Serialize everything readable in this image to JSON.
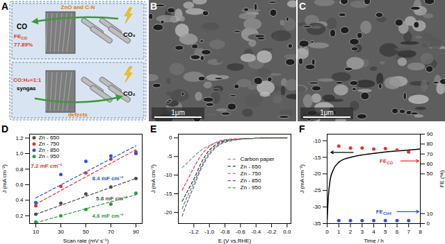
{
  "panels": {
    "A": {
      "letter": "A",
      "top": {
        "label": "ZnO and C-N",
        "product": "CO",
        "fe": {
          "text": "FE",
          "sub": "CO"
        },
        "fe_value": "77.89%",
        "reactant": "CO₂"
      },
      "bottom": {
        "label": "defects",
        "product": "CO:H₂=1:1",
        "product_name": "syngas",
        "reactant": "CO₂"
      }
    },
    "B": {
      "letter": "B",
      "scale_bar": "1μm"
    },
    "C": {
      "letter": "C",
      "scale_bar": "1μm"
    }
  },
  "chart_data": [
    {
      "letter": "D",
      "type": "scatter",
      "x_label": "Scan rate (mV s⁻¹)",
      "y_label": "J (mA cm⁻²)",
      "xlim": [
        5,
        95
      ],
      "xticks": [
        10,
        30,
        50,
        70,
        90
      ],
      "ylim": [
        0.1,
        1.25
      ],
      "yticks": [
        0.2,
        0.4,
        0.6,
        0.8,
        {
          "value": 1,
          "label": "1.0"
        },
        1.2
      ],
      "grid": false,
      "legend": "top-left",
      "marker": "circle",
      "line_style": "dashed",
      "x": [
        10,
        30,
        50,
        70,
        90
      ],
      "fit_x": [
        10,
        90
      ],
      "series": [
        {
          "name": "Zn - 650",
          "color": "#4d4d4d",
          "values": [
            0.22,
            0.36,
            0.48,
            0.57,
            0.68
          ],
          "fit": [
            0.22,
            0.68
          ],
          "annotation": "5.8 mF cm⁻²"
        },
        {
          "name": "Zn - 750",
          "color": "#e8332a",
          "values": [
            0.33,
            0.58,
            0.75,
            0.93,
            1.02
          ],
          "fit": [
            0.35,
            1.05
          ],
          "annotation": "7.2 mF cm⁻²"
        },
        {
          "name": "Zn - 850",
          "color": "#2b54d6",
          "values": [
            0.37,
            0.73,
            0.9,
            0.97,
            1.0
          ],
          "fit": [
            0.43,
            1.1
          ],
          "annotation": "8.4 mF cm⁻²"
        },
        {
          "name": "Zn - 950",
          "color": "#2e9b3a",
          "values": [
            0.12,
            0.2,
            0.28,
            0.35,
            0.49
          ],
          "fit": [
            0.11,
            0.47
          ],
          "annotation": "4.6 mF cm⁻²"
        }
      ]
    },
    {
      "letter": "E",
      "type": "line",
      "x_label": "E (V vs.RHE)",
      "y_label": "J (mA cm⁻²)",
      "xlim": [
        -1.4,
        0.05
      ],
      "xticks": [
        -1.2,
        {
          "value": -1,
          "label": "-1.0"
        },
        -0.8,
        -0.6,
        -0.4,
        -0.2,
        {
          "value": 0,
          "label": "0.0"
        }
      ],
      "ylim": [
        -23,
        1
      ],
      "yticks": [
        -20,
        -15,
        -10,
        -5,
        0
      ],
      "grid": false,
      "legend": "right",
      "line_style": "dashed",
      "x": [
        -1.35,
        -1.3,
        -1.2,
        -1.1,
        -1.0,
        -0.9,
        -0.8,
        -0.6,
        -0.4,
        -0.2,
        0.0
      ],
      "series": [
        {
          "name": "Carbon paper",
          "color": "#8c8c8c",
          "values": [
            -8,
            -7,
            -5,
            -3.2,
            -2,
            -1.2,
            -0.7,
            -0.3,
            -0.1,
            0,
            0
          ]
        },
        {
          "name": "Zn - 650",
          "color": "#333333",
          "values": [
            -17,
            -15,
            -11,
            -6.5,
            -3.3,
            -1.6,
            -0.8,
            -0.3,
            -0.1,
            0,
            0
          ]
        },
        {
          "name": "Zn - 750",
          "color": "#e8336a",
          "values": [
            -14,
            -12,
            -8,
            -4.5,
            -2.3,
            -1.1,
            -0.5,
            -0.2,
            -0.1,
            0,
            0
          ]
        },
        {
          "name": "Zn - 850",
          "color": "#7b3fa8",
          "values": [
            -21,
            -18,
            -13,
            -8,
            -4.5,
            -2.3,
            -1.2,
            -0.4,
            -0.1,
            0,
            0
          ]
        },
        {
          "name": "Zn - 950",
          "color": "#3f9a3f",
          "values": [
            -19,
            -16.5,
            -12,
            -7.5,
            -4,
            -2,
            -1,
            -0.3,
            -0.1,
            0,
            0
          ]
        }
      ]
    },
    {
      "letter": "F",
      "type": "line",
      "x_label": "Time / h",
      "y_label": "J (mA cm⁻²)",
      "y2_label": "FE (%)",
      "xlim": [
        0,
        8
      ],
      "xticks": [
        0,
        1,
        2,
        3,
        4,
        5,
        6,
        7,
        8
      ],
      "ylim": [
        -35,
        -8
      ],
      "yticks": [
        -35,
        -30,
        -25,
        -20,
        -15,
        -10
      ],
      "y2lim": [
        0,
        90
      ],
      "y2ticks": [
        0,
        10,
        50,
        60,
        70,
        80,
        90
      ],
      "grid": false,
      "series": [
        {
          "type": "line",
          "color": "#000000",
          "x": [
            0,
            0.1,
            0.25,
            0.5,
            1,
            1.5,
            2,
            3,
            4,
            5,
            6,
            7,
            8
          ],
          "values": [
            -34,
            -27,
            -22,
            -19,
            -16.5,
            -15.5,
            -15,
            -14.3,
            -13.8,
            -13.4,
            -13.1,
            -12.8,
            -12.5
          ]
        },
        {
          "type": "scatter",
          "axis": "y2",
          "marker": "circle",
          "name": "FE",
          "name_sub": "CO",
          "color": "#e8332a",
          "x": [
            1,
            2,
            3,
            4,
            5,
            6,
            7
          ],
          "values": [
            78,
            76,
            76,
            75,
            75.5,
            74,
            72
          ]
        },
        {
          "type": "scatter",
          "axis": "y2",
          "marker": "circle",
          "name": "FE",
          "name_sub": "CH4",
          "color": "#2b54d6",
          "x": [
            1,
            2,
            3,
            4,
            5,
            6,
            7
          ],
          "values": [
            3,
            3,
            3,
            3,
            3,
            3,
            3
          ]
        }
      ]
    }
  ]
}
